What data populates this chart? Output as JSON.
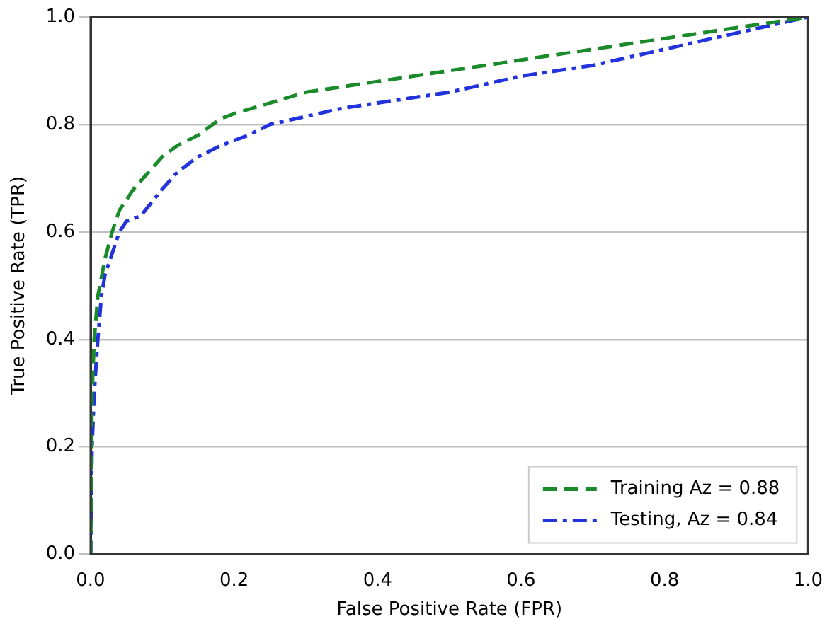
{
  "chart_data": {
    "type": "line",
    "xlabel": "False Positive Rate (FPR)",
    "ylabel": "True Positive Rate (TPR)",
    "xlim": [
      0,
      1
    ],
    "ylim": [
      0,
      1
    ],
    "xticks": [
      {
        "value": 0,
        "label": "0.0"
      },
      0.2,
      0.4,
      0.6,
      0.8,
      {
        "value": 1,
        "label": "1.0"
      }
    ],
    "yticks": [
      {
        "value": 0,
        "label": "0.0"
      },
      0.2,
      0.4,
      0.6,
      0.8,
      {
        "value": 1,
        "label": "1.0"
      }
    ],
    "grid": "y",
    "legend": "bottom right",
    "marker": "none",
    "series": [
      {
        "name": "Training Az = 0.88",
        "color": "#1a8a2a",
        "line_style": "dashed",
        "x": [
          0,
          0.002,
          0.005,
          0.01,
          0.02,
          0.03,
          0.04,
          0.06,
          0.08,
          0.1,
          0.12,
          0.15,
          0.18,
          0.2,
          0.25,
          0.3,
          0.35,
          0.4,
          0.5,
          0.6,
          0.7,
          0.8,
          0.9,
          1
        ],
        "values": [
          0,
          0.3,
          0.4,
          0.48,
          0.55,
          0.6,
          0.64,
          0.68,
          0.71,
          0.74,
          0.76,
          0.78,
          0.81,
          0.82,
          0.84,
          0.86,
          0.87,
          0.88,
          0.9,
          0.92,
          0.94,
          0.96,
          0.98,
          1
        ]
      },
      {
        "name": "Testing, Az = 0.84",
        "color": "#2233dd",
        "line_style": "dashdot",
        "x": [
          0,
          0.002,
          0.005,
          0.01,
          0.015,
          0.02,
          0.03,
          0.04,
          0.05,
          0.07,
          0.1,
          0.12,
          0.15,
          0.18,
          0.22,
          0.25,
          0.3,
          0.35,
          0.4,
          0.5,
          0.6,
          0.7,
          0.8,
          0.9,
          1
        ],
        "values": [
          0,
          0.2,
          0.3,
          0.4,
          0.48,
          0.52,
          0.56,
          0.6,
          0.62,
          0.63,
          0.68,
          0.71,
          0.74,
          0.76,
          0.78,
          0.8,
          0.815,
          0.83,
          0.84,
          0.86,
          0.89,
          0.91,
          0.94,
          0.97,
          1
        ]
      }
    ]
  }
}
